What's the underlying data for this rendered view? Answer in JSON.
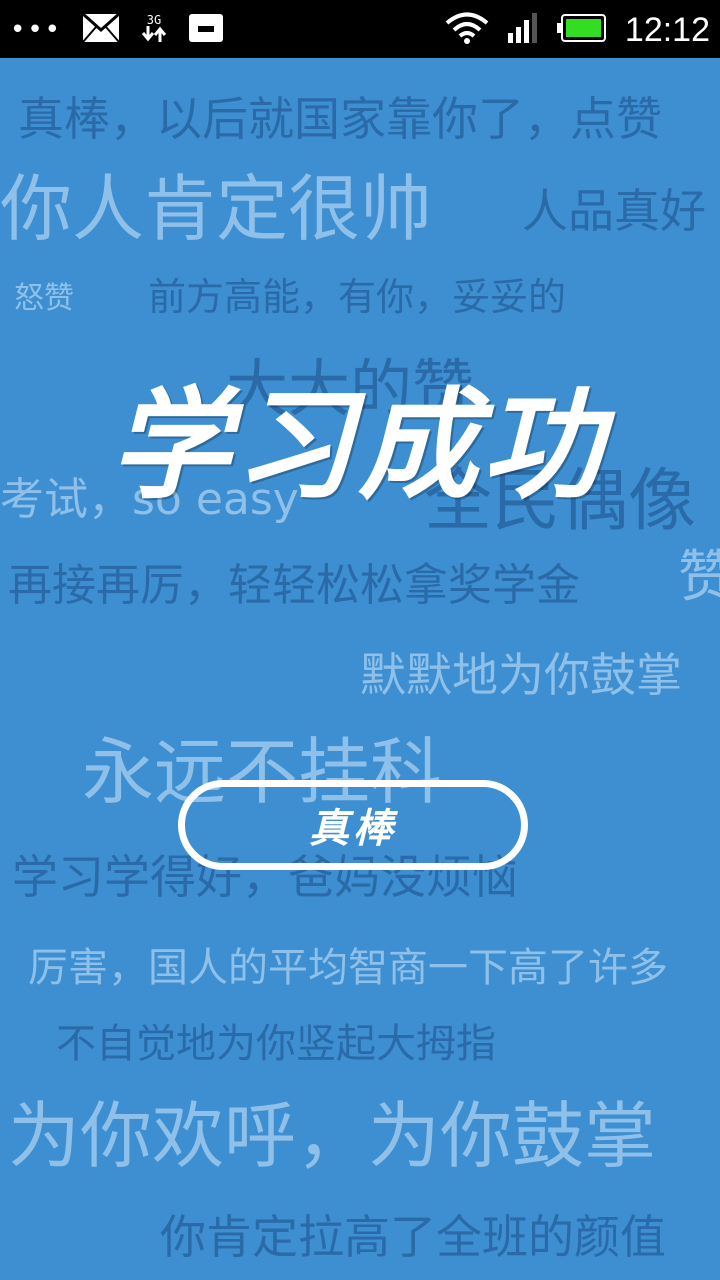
{
  "status_bar": {
    "overflow_dots": "•••",
    "network_type": "3G",
    "time": "12:12",
    "battery_color": "#33dd22"
  },
  "background_texts": [
    {
      "text": "真棒，以后就国家靠你了，点赞",
      "color": "#2a6aa8"
    },
    {
      "text": "你人肯定很帅",
      "color": "#8fc0ea"
    },
    {
      "text": "人品真好",
      "color": "#2a6aa8"
    },
    {
      "text": "怒赞",
      "color": "#8fc0ea"
    },
    {
      "text": "前方高能，有你，妥妥的",
      "color": "#2a6aa8"
    },
    {
      "text": "大大的赞",
      "color": "#2a6aa8"
    },
    {
      "text": "考试，so easy",
      "color": "#8fc0ea"
    },
    {
      "text": "全民偶像",
      "color": "#2a6aa8"
    },
    {
      "text": "再接再厉，轻轻松松拿奖学金",
      "color": "#2a6aa8"
    },
    {
      "text": "赞",
      "color": "#8fc0ea"
    },
    {
      "text": "默默地为你鼓掌",
      "color": "#8fc0ea"
    },
    {
      "text": "永远不挂科",
      "color": "#8fc0ea"
    },
    {
      "text": "学习学得好，爸妈没烦恼",
      "color": "#2a6aa8"
    },
    {
      "text": "厉害，国人的平均智商一下高了许多",
      "color": "#8fc0ea"
    },
    {
      "text": "不自觉地为你竖起大拇指",
      "color": "#2a6aa8"
    },
    {
      "text": "为你欢呼，为你鼓掌",
      "color": "#8fc0ea"
    },
    {
      "text": "你肯定拉高了全班的颜值",
      "color": "#2a6aa8"
    }
  ],
  "title": "学习成功",
  "action_button": {
    "label": "真棒"
  }
}
